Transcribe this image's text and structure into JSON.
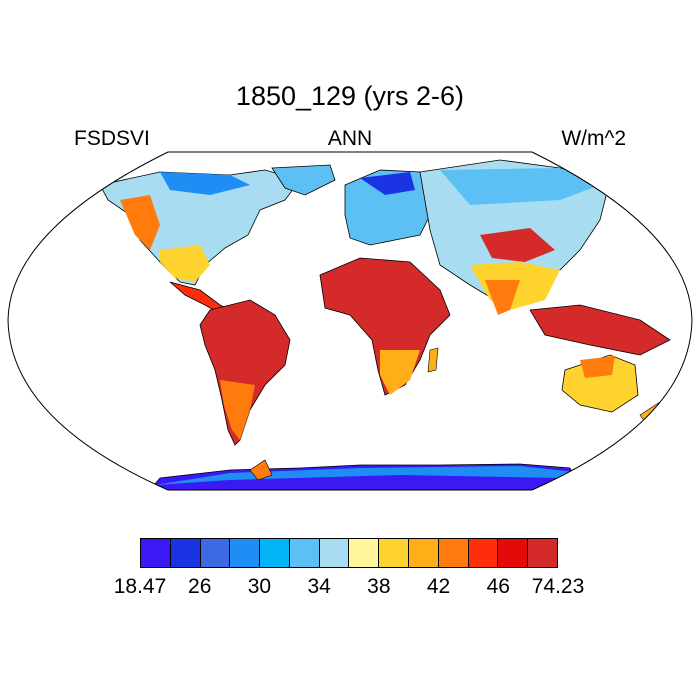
{
  "title": "1850_129 (yrs 2-6)",
  "labels": {
    "left": "FSDSVI",
    "center": "ANN",
    "right": "W/m^2"
  },
  "colorbar": {
    "colors": [
      "#3a19f5",
      "#1b34e3",
      "#3d6ae3",
      "#1e8ef5",
      "#03b4f7",
      "#5cc0f5",
      "#a8dcf0",
      "#fff59a",
      "#ffd32e",
      "#ffae17",
      "#ff7b0e",
      "#ff2d0a",
      "#e30a0a",
      "#d42a2a"
    ],
    "tick_labels": [
      "18.47",
      "26",
      "30",
      "34",
      "38",
      "42",
      "46",
      "74.23"
    ]
  },
  "map": {
    "projection": "robinson",
    "field": "FSDSVI",
    "units": "W/m^2",
    "period": "ANN",
    "range": [
      18.47,
      74.23
    ]
  }
}
